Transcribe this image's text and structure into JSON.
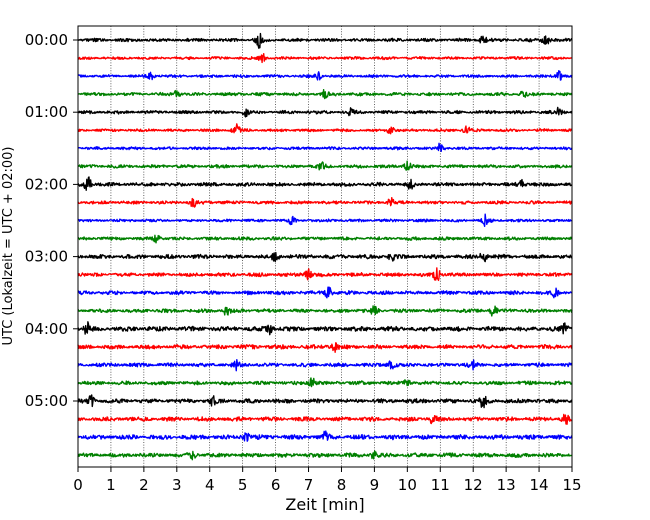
{
  "chart_data": {
    "type": "line",
    "title": "",
    "xlabel": "Zeit  [min]",
    "ylabel": "UTC (Lokalzeit = UTC + 02:00)",
    "xlim": [
      0,
      15
    ],
    "x_ticks": [
      "0",
      "1",
      "2",
      "3",
      "4",
      "5",
      "6",
      "7",
      "8",
      "9",
      "10",
      "11",
      "12",
      "13",
      "14",
      "15"
    ],
    "y_ticks": [
      {
        "label": "00:00",
        "row": 0
      },
      {
        "label": "01:00",
        "row": 4
      },
      {
        "label": "02:00",
        "row": 8
      },
      {
        "label": "03:00",
        "row": 12
      },
      {
        "label": "04:00",
        "row": 16
      },
      {
        "label": "05:00",
        "row": 20
      }
    ],
    "grid": "vertical dotted at each minute",
    "rows_per_hour": 4,
    "row_minutes": 15,
    "row_colors": [
      "#000000",
      "#ff0000",
      "#0000ff",
      "#008000"
    ],
    "series": [
      {
        "start": "00:00",
        "amplitude": 0.35,
        "bursts": [
          {
            "t": 5.5,
            "a": 1.0
          },
          {
            "t": 14.2,
            "a": 0.9
          },
          {
            "t": 12.3,
            "a": 0.6
          }
        ]
      },
      {
        "start": "00:15",
        "amplitude": 0.3,
        "bursts": [
          {
            "t": 5.6,
            "a": 0.6
          }
        ]
      },
      {
        "start": "00:30",
        "amplitude": 0.3,
        "bursts": [
          {
            "t": 2.2,
            "a": 0.5
          },
          {
            "t": 7.3,
            "a": 0.5
          },
          {
            "t": 14.6,
            "a": 0.7
          }
        ]
      },
      {
        "start": "00:45",
        "amplitude": 0.35,
        "bursts": [
          {
            "t": 3.0,
            "a": 0.5
          },
          {
            "t": 7.5,
            "a": 0.6
          },
          {
            "t": 13.5,
            "a": 0.5
          }
        ]
      },
      {
        "start": "01:00",
        "amplitude": 0.35,
        "bursts": [
          {
            "t": 5.1,
            "a": 0.5
          },
          {
            "t": 8.3,
            "a": 0.5
          },
          {
            "t": 14.6,
            "a": 0.6
          }
        ]
      },
      {
        "start": "01:15",
        "amplitude": 0.3,
        "bursts": [
          {
            "t": 4.8,
            "a": 0.8
          },
          {
            "t": 9.5,
            "a": 0.6
          },
          {
            "t": 11.8,
            "a": 0.5
          }
        ]
      },
      {
        "start": "01:30",
        "amplitude": 0.3,
        "bursts": [
          {
            "t": 11.0,
            "a": 0.6
          }
        ]
      },
      {
        "start": "01:45",
        "amplitude": 0.35,
        "bursts": [
          {
            "t": 7.4,
            "a": 0.5
          },
          {
            "t": 10.0,
            "a": 0.8
          }
        ]
      },
      {
        "start": "02:00",
        "amplitude": 0.4,
        "bursts": [
          {
            "t": 0.3,
            "a": 1.0
          },
          {
            "t": 10.1,
            "a": 0.6
          },
          {
            "t": 13.5,
            "a": 0.6
          }
        ]
      },
      {
        "start": "02:15",
        "amplitude": 0.35,
        "bursts": [
          {
            "t": 3.5,
            "a": 0.6
          },
          {
            "t": 9.5,
            "a": 0.6
          }
        ]
      },
      {
        "start": "02:30",
        "amplitude": 0.3,
        "bursts": [
          {
            "t": 6.5,
            "a": 0.5
          },
          {
            "t": 12.4,
            "a": 0.9
          }
        ]
      },
      {
        "start": "02:45",
        "amplitude": 0.35,
        "bursts": [
          {
            "t": 2.4,
            "a": 0.5
          }
        ]
      },
      {
        "start": "03:00",
        "amplitude": 0.45,
        "bursts": [
          {
            "t": 6.0,
            "a": 0.7
          },
          {
            "t": 9.5,
            "a": 0.6
          },
          {
            "t": 12.3,
            "a": 0.9
          }
        ]
      },
      {
        "start": "03:15",
        "amplitude": 0.4,
        "bursts": [
          {
            "t": 7.0,
            "a": 0.8
          },
          {
            "t": 10.9,
            "a": 1.0
          }
        ]
      },
      {
        "start": "03:30",
        "amplitude": 0.4,
        "bursts": [
          {
            "t": 7.6,
            "a": 0.8
          },
          {
            "t": 14.5,
            "a": 0.6
          }
        ]
      },
      {
        "start": "03:45",
        "amplitude": 0.4,
        "bursts": [
          {
            "t": 4.5,
            "a": 0.6
          },
          {
            "t": 9.0,
            "a": 0.5
          },
          {
            "t": 12.6,
            "a": 0.7
          }
        ]
      },
      {
        "start": "04:00",
        "amplitude": 0.5,
        "bursts": [
          {
            "t": 0.3,
            "a": 0.9
          },
          {
            "t": 5.8,
            "a": 0.8
          },
          {
            "t": 14.8,
            "a": 0.6
          }
        ]
      },
      {
        "start": "04:15",
        "amplitude": 0.45,
        "bursts": [
          {
            "t": 7.8,
            "a": 0.6
          }
        ]
      },
      {
        "start": "04:30",
        "amplitude": 0.4,
        "bursts": [
          {
            "t": 4.8,
            "a": 0.6
          },
          {
            "t": 9.5,
            "a": 0.6
          },
          {
            "t": 12.0,
            "a": 0.5
          }
        ]
      },
      {
        "start": "04:45",
        "amplitude": 0.4,
        "bursts": [
          {
            "t": 7.1,
            "a": 0.8
          },
          {
            "t": 10.0,
            "a": 0.5
          }
        ]
      },
      {
        "start": "05:00",
        "amplitude": 0.45,
        "bursts": [
          {
            "t": 0.4,
            "a": 0.7
          },
          {
            "t": 4.1,
            "a": 0.6
          },
          {
            "t": 12.3,
            "a": 0.8
          }
        ]
      },
      {
        "start": "05:15",
        "amplitude": 0.45,
        "bursts": [
          {
            "t": 10.8,
            "a": 0.8
          },
          {
            "t": 14.8,
            "a": 0.6
          }
        ]
      },
      {
        "start": "05:30",
        "amplitude": 0.5,
        "bursts": [
          {
            "t": 5.1,
            "a": 0.8
          },
          {
            "t": 7.5,
            "a": 0.6
          }
        ]
      },
      {
        "start": "05:45",
        "amplitude": 0.45,
        "bursts": [
          {
            "t": 3.5,
            "a": 0.5
          },
          {
            "t": 9.0,
            "a": 0.5
          }
        ]
      }
    ]
  }
}
